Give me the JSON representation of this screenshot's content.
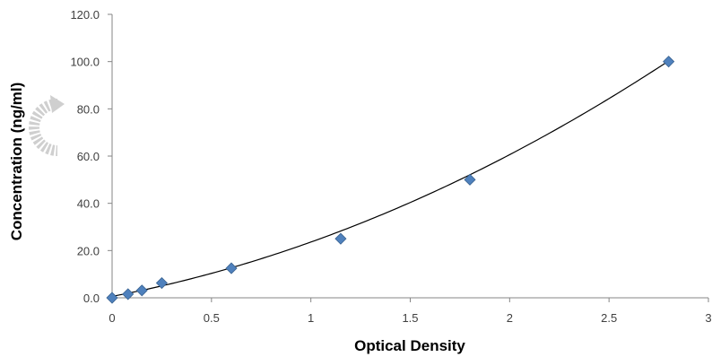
{
  "chart_data": {
    "type": "scatter",
    "xlabel": "Optical Density",
    "ylabel": "Concentration (ng/ml)",
    "xlim": [
      0,
      3
    ],
    "ylim": [
      0,
      120
    ],
    "x_ticks": [
      "0",
      "0.5",
      "1",
      "1.5",
      "2",
      "2.5",
      "3"
    ],
    "y_ticks": [
      "0.0",
      "20.0",
      "40.0",
      "60.0",
      "80.0",
      "100.0",
      "120.0"
    ],
    "grid": false,
    "legend": "none",
    "series": [
      {
        "marker": "diamond",
        "color": "#4f81bd",
        "x": [
          0.0,
          0.08,
          0.15,
          0.25,
          0.6,
          1.15,
          1.8,
          2.8
        ],
        "y": [
          0.0,
          1.56,
          3.12,
          6.25,
          12.5,
          25.0,
          50.0,
          100.0
        ]
      }
    ],
    "trendline": {
      "type": "polynomial",
      "color": "#000000",
      "coefficients": [
        0.6,
        16.0,
        7.0
      ]
    }
  },
  "watermark": {
    "icon": "circular-arrow-icon",
    "color": "#c8c8c8"
  }
}
